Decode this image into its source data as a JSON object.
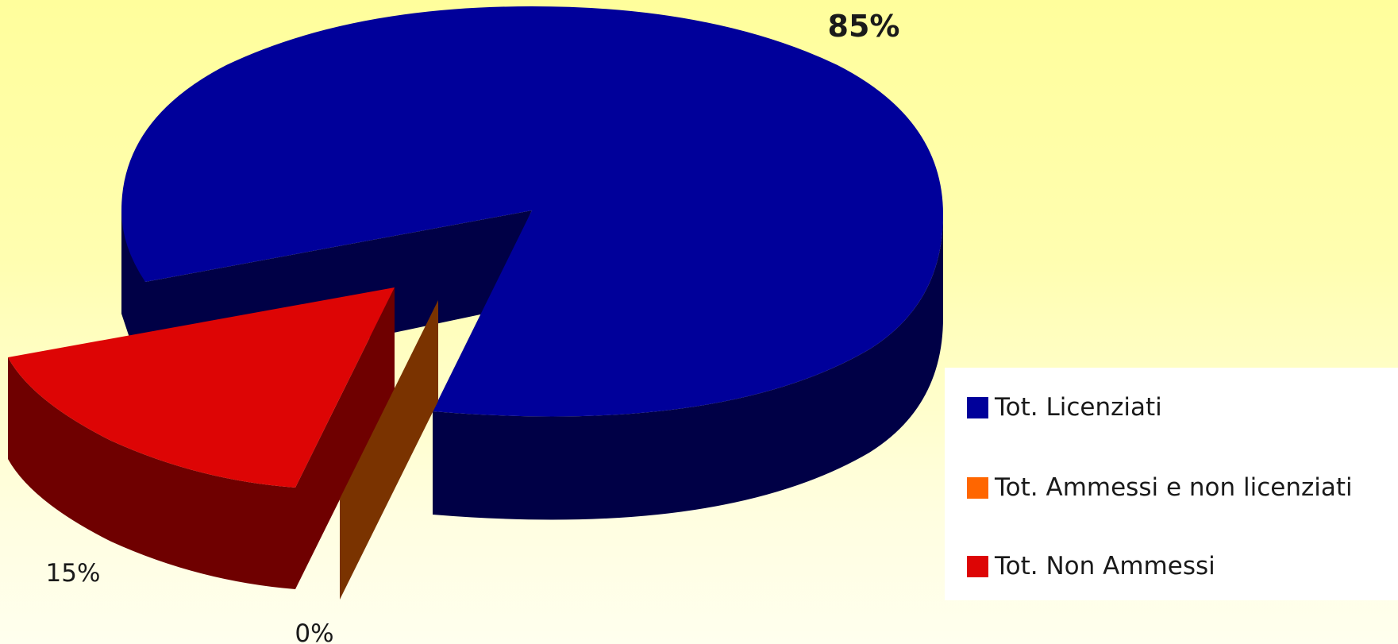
{
  "chart_data": {
    "type": "pie",
    "style": "3d-exploded",
    "series": [
      {
        "name": "Tot. Licenziati",
        "value": 85,
        "label": "85%",
        "color": "#00009a",
        "side_color": "#000046"
      },
      {
        "name": "Tot. Ammessi e non licenziati",
        "value": 0,
        "label": "0%",
        "color": "#ff6600",
        "side_color": "#7a3300"
      },
      {
        "name": "Tot. Non Ammessi",
        "value": 15,
        "label": "15%",
        "color": "#dd0505",
        "side_color": "#6f0000"
      }
    ],
    "legend_position": "right"
  }
}
